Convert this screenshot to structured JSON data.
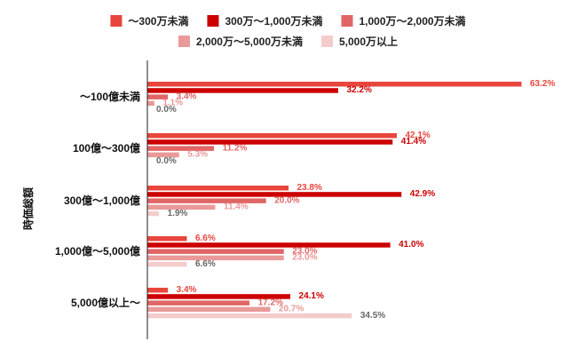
{
  "chart_data": {
    "type": "bar",
    "orientation": "horizontal",
    "title": "",
    "ylabel": "時価総額",
    "xlabel": "",
    "xlim": [
      0,
      65
    ],
    "unit": "%",
    "grid": false,
    "legend_position": "top",
    "categories": [
      "〜100億未満",
      "100億〜300億",
      "300億〜1,000億",
      "1,000億〜5,000億",
      "5,000億以上〜"
    ],
    "series": [
      {
        "name": "〜300万未満",
        "color": "#e8453c",
        "label_color": "#e8453c",
        "values": [
          63.2,
          42.1,
          23.8,
          6.6,
          3.4
        ]
      },
      {
        "name": "300万〜1,000万未満",
        "color": "#cc0000",
        "label_color": "#cc0000",
        "values": [
          32.2,
          41.4,
          42.9,
          41.0,
          24.1
        ]
      },
      {
        "name": "1,000万〜2,000万未満",
        "color": "#e06666",
        "label_color": "#e06666",
        "values": [
          3.4,
          11.2,
          20.0,
          23.0,
          17.2
        ]
      },
      {
        "name": "2,000万〜5,000万未満",
        "color": "#ea9999",
        "label_color": "#ea9999",
        "values": [
          1.1,
          5.3,
          11.4,
          23.0,
          20.7
        ]
      },
      {
        "name": "5,000万以上",
        "color": "#f4cccc",
        "label_color": "#666666",
        "values": [
          0.0,
          0.0,
          1.9,
          6.6,
          34.5
        ]
      }
    ],
    "value_labels": [
      [
        "63.2%",
        "32.2%",
        "3.4%",
        "1.1%",
        "0.0%"
      ],
      [
        "42.1%",
        "41.4%",
        "11.2%",
        "5.3%",
        "0.0%"
      ],
      [
        "23.8%",
        "42.9%",
        "20.0%",
        "11.4%",
        "1.9%"
      ],
      [
        "6.6%",
        "41.0%",
        "23.0%",
        "23.0%",
        "6.6%"
      ],
      [
        "3.4%",
        "24.1%",
        "17.2%",
        "20.7%",
        "34.5%"
      ]
    ]
  }
}
